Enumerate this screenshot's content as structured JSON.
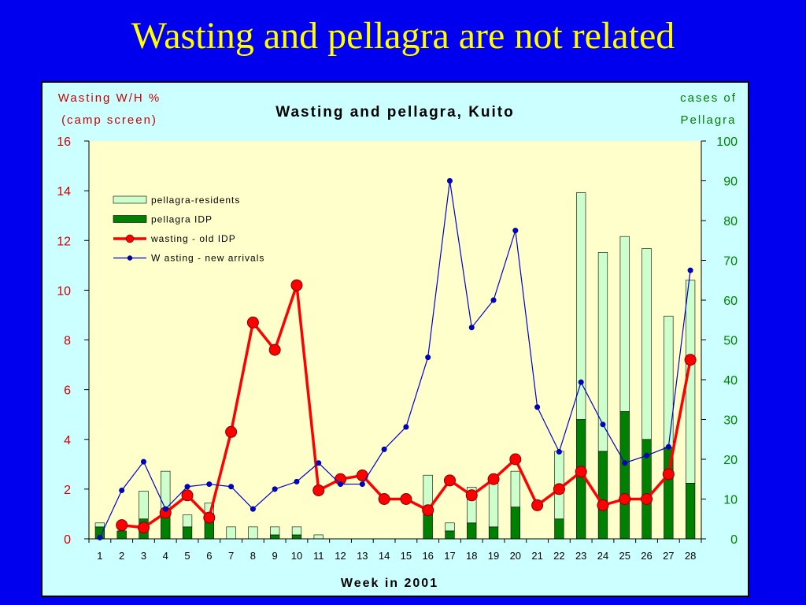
{
  "slide": {
    "title": "Wasting and pellagra are not related"
  },
  "chart_data": {
    "type": "bar+line",
    "title": "Wasting and pellagra, Kuito",
    "xlabel": "Week in 2001",
    "ylabel_left_line1": "Wasting W/H %",
    "ylabel_left_line2": "(camp screen)",
    "ylabel_right_line1": "cases of",
    "ylabel_right_line2": "Pellagra",
    "categories": [
      1,
      2,
      3,
      4,
      5,
      6,
      7,
      8,
      9,
      10,
      11,
      12,
      13,
      14,
      15,
      16,
      17,
      18,
      19,
      20,
      21,
      22,
      23,
      24,
      25,
      26,
      27,
      28
    ],
    "ylim_left": [
      0,
      16
    ],
    "yticks_left": [
      0,
      2,
      4,
      6,
      8,
      10,
      12,
      14,
      16
    ],
    "ylim_right": [
      0,
      100
    ],
    "yticks_right": [
      0,
      10,
      20,
      30,
      40,
      50,
      60,
      70,
      80,
      90,
      100
    ],
    "legend_position": "upper-left",
    "series": [
      {
        "name": "pellagra-residents",
        "kind": "bar-stacked-top",
        "axis": "right",
        "color": "#ccffcc",
        "values": [
          1,
          0,
          7,
          11,
          3,
          4,
          3,
          3,
          2,
          2,
          1,
          0,
          0,
          0,
          0,
          10,
          2,
          9,
          11,
          9,
          0,
          17,
          57,
          50,
          44,
          48,
          33,
          51
        ]
      },
      {
        "name": "pellagra IDP",
        "kind": "bar-stacked-base",
        "axis": "right",
        "color": "#008000",
        "values": [
          3,
          2,
          5,
          6,
          3,
          5,
          0,
          0,
          1,
          1,
          0,
          0,
          0,
          0,
          0,
          6,
          2,
          4,
          3,
          8,
          0,
          5,
          30,
          22,
          32,
          25,
          23,
          14
        ]
      },
      {
        "name": "wasting - old IDP",
        "kind": "line",
        "axis": "left",
        "color": "#ff0000",
        "x": [
          2,
          3,
          4,
          5,
          6,
          7,
          8,
          9,
          10,
          11,
          12,
          13,
          14,
          15,
          16,
          17,
          18,
          19,
          20,
          21,
          22,
          23,
          24,
          25,
          26,
          27,
          28
        ],
        "values": [
          0.55,
          0.45,
          1.05,
          1.75,
          0.85,
          4.3,
          8.7,
          7.6,
          10.2,
          1.95,
          2.4,
          2.55,
          1.6,
          1.6,
          1.15,
          2.35,
          1.75,
          2.4,
          3.2,
          1.35,
          2.0,
          2.7,
          1.35,
          1.6,
          1.6,
          2.6,
          7.2
        ]
      },
      {
        "name": "W asting - new arrivals",
        "kind": "line",
        "axis": "left",
        "color": "#0000cc",
        "values": [
          0.05,
          1.95,
          3.1,
          1.2,
          2.1,
          2.2,
          2.1,
          1.2,
          2.0,
          2.3,
          3.05,
          2.2,
          2.2,
          3.6,
          4.5,
          7.3,
          14.4,
          8.5,
          9.6,
          12.4,
          5.3,
          3.5,
          6.3,
          4.6,
          3.05,
          3.35,
          3.7,
          10.8
        ]
      }
    ]
  }
}
